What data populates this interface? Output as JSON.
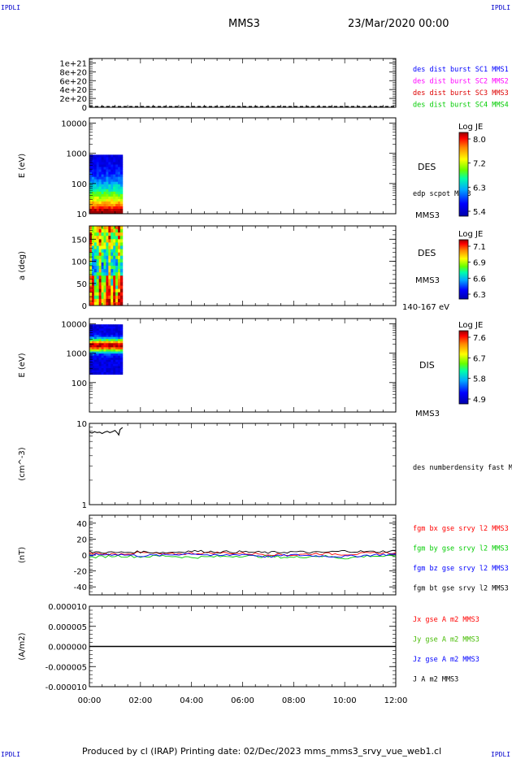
{
  "corners": {
    "top_left": "IPDLI",
    "top_right": "IPDLI",
    "bottom_left": "IPDLI",
    "bottom_right": "IPDLI"
  },
  "header": {
    "spacecraft": "MMS3",
    "date": "23/Mar/2020 00:00"
  },
  "footer": "Produced by cl (IRAP)   Printing date: 02/Dec/2023   mms_mms3_srvy_vue_web1.cl",
  "colors": {
    "mms1": "#0000ff",
    "mms2": "#ff00ff",
    "mms3": "#dd0000",
    "mms4": "#00cc00",
    "bx": "#ff0000",
    "by": "#00cc00",
    "bz": "#0000ff",
    "bt": "#000000",
    "jx": "#ff0000",
    "jy": "#44bb00",
    "jz": "#0000ff",
    "j": "#000000"
  },
  "chart_data": [
    {
      "type": "line",
      "panel": "dist",
      "ylim": [
        0,
        1.1e+21
      ],
      "ytick_labels": [
        "1e+21",
        "8e+20",
        "6e+20",
        "4e+20",
        "2e+20",
        "0"
      ],
      "series": [
        {
          "name": "des dist burst SC1 MMS1",
          "values": []
        },
        {
          "name": "des dist burst SC2 MMS2",
          "values": []
        },
        {
          "name": "des dist burst SC3 MMS3",
          "values": []
        },
        {
          "name": "des dist burst SC4 MMS4",
          "values": []
        }
      ]
    },
    {
      "type": "heatmap",
      "panel": "des_energy",
      "ylabel": "E (eV)",
      "yscale": "log",
      "ylim": [
        10,
        15000
      ],
      "ytick_labels": [
        "10000",
        "1000",
        "100",
        "10"
      ],
      "data_extent_hours": [
        0,
        1.3
      ],
      "right_labels": [
        "DES",
        "edp scpot MMS3",
        "MMS3"
      ],
      "colorbar": {
        "label": "Log JE",
        "ticks": [
          "8.0",
          "7.2",
          "6.3",
          "5.4"
        ],
        "range": [
          5.4,
          8.0
        ]
      }
    },
    {
      "type": "heatmap",
      "panel": "des_pitch",
      "ylabel": "a (deg)",
      "ylim": [
        0,
        180
      ],
      "ytick_labels": [
        "150",
        "100",
        "50",
        "0"
      ],
      "data_extent_hours": [
        0,
        1.3
      ],
      "right_labels": [
        "DES",
        "MMS3",
        "140-167 eV"
      ],
      "colorbar": {
        "label": "Log JE",
        "ticks": [
          "7.1",
          "6.9",
          "6.6",
          "6.3"
        ],
        "range": [
          6.3,
          7.1
        ]
      }
    },
    {
      "type": "heatmap",
      "panel": "dis_energy",
      "ylabel": "E (eV)",
      "yscale": "log",
      "ylim": [
        10,
        15000
      ],
      "ytick_labels": [
        "10000",
        "1000",
        "100"
      ],
      "data_extent_hours": [
        0,
        1.3
      ],
      "right_labels": [
        "DIS",
        "MMS3"
      ],
      "colorbar": {
        "label": "Log JE",
        "ticks": [
          "7.6",
          "6.7",
          "5.8",
          "4.9"
        ],
        "range": [
          4.9,
          7.6
        ]
      }
    },
    {
      "type": "line",
      "panel": "density",
      "ylabel": "(cm^-3)",
      "yscale": "log",
      "ylim": [
        1,
        10
      ],
      "ytick_labels": [
        "10",
        "1"
      ],
      "series": [
        {
          "name": "des numberdensity fast M",
          "x": [
            0,
            0.1,
            0.2,
            0.3,
            0.4,
            0.5,
            0.6,
            0.7,
            0.8,
            0.9,
            1.0,
            1.1,
            1.15,
            1.2,
            1.3
          ],
          "values": [
            7.8,
            7.6,
            7.9,
            7.7,
            7.8,
            7.5,
            7.8,
            8.0,
            7.7,
            7.9,
            8.2,
            7.6,
            7.2,
            8.4,
            8.9
          ]
        }
      ]
    },
    {
      "type": "line",
      "panel": "fgm",
      "ylabel": "(nT)",
      "ylim": [
        -50,
        50
      ],
      "ytick_labels": [
        "40",
        "20",
        "0",
        "-20",
        "-40"
      ],
      "x": [
        0,
        1,
        2,
        3,
        4,
        5,
        6,
        7,
        8,
        9,
        10,
        11,
        12
      ],
      "series": [
        {
          "name": "fgm bx gse srvy l2 MMS3",
          "values": [
            2,
            1,
            3,
            1,
            2,
            3,
            2,
            1,
            0,
            2,
            1,
            2,
            3
          ]
        },
        {
          "name": "fgm by gse srvy l2 MMS3",
          "values": [
            -3,
            -1,
            -2,
            -1,
            -3,
            -2,
            -1,
            -2,
            -3,
            -1,
            -4,
            -1,
            -2
          ]
        },
        {
          "name": "fgm bz gse srvy l2 MMS3",
          "values": [
            0,
            1,
            -1,
            0,
            2,
            -1,
            1,
            -2,
            0,
            -1,
            -2,
            0,
            1
          ]
        },
        {
          "name": "fgm bt gse srvy l2 MMS3",
          "values": [
            4,
            3,
            4,
            3,
            5,
            4,
            4,
            3,
            4,
            3,
            5,
            4,
            5
          ]
        }
      ]
    },
    {
      "type": "line",
      "panel": "current",
      "ylabel": "(A/m2)",
      "ylim": [
        -1e-05,
        1e-05
      ],
      "ytick_labels": [
        "0.000010",
        "0.000005",
        "0.000000",
        "-0.000005",
        "-0.000010"
      ],
      "x": [
        0,
        12
      ],
      "series": [
        {
          "name": "Jx gse A m2 MMS3",
          "values": [
            0,
            0
          ]
        },
        {
          "name": "Jy gse A m2 MMS3",
          "values": [
            0,
            0
          ]
        },
        {
          "name": "Jz gse A m2 MMS3",
          "values": [
            0,
            0
          ]
        },
        {
          "name": "J A m2 MMS3",
          "values": [
            0,
            0
          ]
        }
      ]
    }
  ],
  "xaxis": {
    "tick_labels": [
      "00:00",
      "02:00",
      "04:00",
      "06:00",
      "08:00",
      "10:00",
      "12:00"
    ],
    "range_hours": [
      0,
      12
    ]
  }
}
